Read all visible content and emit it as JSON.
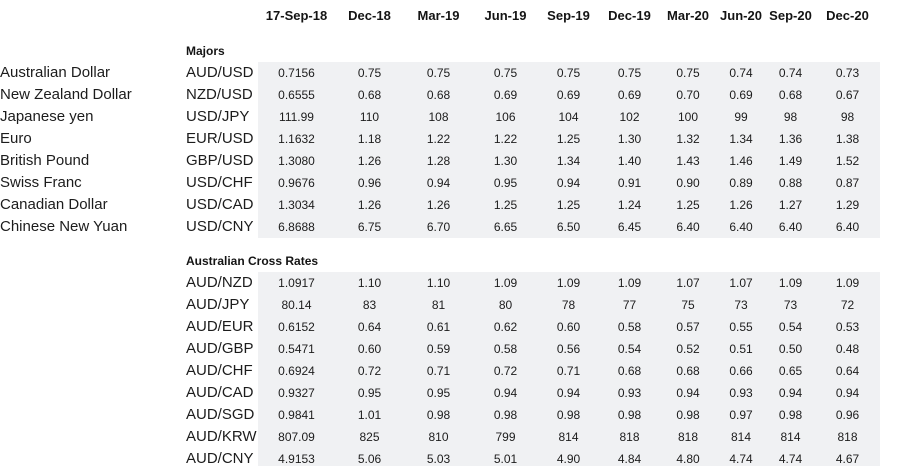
{
  "page": {
    "background_color": "#ffffff",
    "text_color": "#1c1c1c",
    "data_cell_background": "#f0f1f3"
  },
  "chart_data": {
    "type": "table",
    "title": "",
    "columns": [
      "17-Sep-18",
      "Dec-18",
      "Mar-19",
      "Jun-19",
      "Sep-19",
      "Dec-19",
      "Mar-20",
      "Jun-20",
      "Sep-20",
      "Dec-20"
    ],
    "layout": {
      "grid": false,
      "borders": "none",
      "numeric_cell_background": "#f0f1f3",
      "sections_separated": true
    },
    "sections": [
      {
        "label": "Majors",
        "rows": [
          {
            "name": "Australian Dollar",
            "pair": "AUD/USD",
            "values": [
              "0.7156",
              "0.75",
              "0.75",
              "0.75",
              "0.75",
              "0.75",
              "0.75",
              "0.74",
              "0.74",
              "0.73"
            ]
          },
          {
            "name": "New Zealand Dollar",
            "pair": "NZD/USD",
            "values": [
              "0.6555",
              "0.68",
              "0.68",
              "0.69",
              "0.69",
              "0.69",
              "0.70",
              "0.69",
              "0.68",
              "0.67"
            ]
          },
          {
            "name": "Japanese yen",
            "pair": "USD/JPY",
            "values": [
              "111.99",
              "110",
              "108",
              "106",
              "104",
              "102",
              "100",
              "99",
              "98",
              "98"
            ]
          },
          {
            "name": "Euro",
            "pair": "EUR/USD",
            "values": [
              "1.1632",
              "1.18",
              "1.22",
              "1.22",
              "1.25",
              "1.30",
              "1.32",
              "1.34",
              "1.36",
              "1.38"
            ]
          },
          {
            "name": "British Pound",
            "pair": "GBP/USD",
            "values": [
              "1.3080",
              "1.26",
              "1.28",
              "1.30",
              "1.34",
              "1.40",
              "1.43",
              "1.46",
              "1.49",
              "1.52"
            ]
          },
          {
            "name": "Swiss Franc",
            "pair": "USD/CHF",
            "values": [
              "0.9676",
              "0.96",
              "0.94",
              "0.95",
              "0.94",
              "0.91",
              "0.90",
              "0.89",
              "0.88",
              "0.87"
            ]
          },
          {
            "name": "Canadian Dollar",
            "pair": "USD/CAD",
            "values": [
              "1.3034",
              "1.26",
              "1.26",
              "1.25",
              "1.25",
              "1.24",
              "1.25",
              "1.26",
              "1.27",
              "1.29"
            ]
          },
          {
            "name": "Chinese New Yuan",
            "pair": "USD/CNY",
            "values": [
              "6.8688",
              "6.75",
              "6.70",
              "6.65",
              "6.50",
              "6.45",
              "6.40",
              "6.40",
              "6.40",
              "6.40"
            ]
          }
        ]
      },
      {
        "label": "Australian Cross Rates",
        "rows": [
          {
            "name": "",
            "pair": "AUD/NZD",
            "values": [
              "1.0917",
              "1.10",
              "1.10",
              "1.09",
              "1.09",
              "1.09",
              "1.07",
              "1.07",
              "1.09",
              "1.09"
            ]
          },
          {
            "name": "",
            "pair": "AUD/JPY",
            "values": [
              "80.14",
              "83",
              "81",
              "80",
              "78",
              "77",
              "75",
              "73",
              "73",
              "72"
            ]
          },
          {
            "name": "",
            "pair": "AUD/EUR",
            "values": [
              "0.6152",
              "0.64",
              "0.61",
              "0.62",
              "0.60",
              "0.58",
              "0.57",
              "0.55",
              "0.54",
              "0.53"
            ]
          },
          {
            "name": "",
            "pair": "AUD/GBP",
            "values": [
              "0.5471",
              "0.60",
              "0.59",
              "0.58",
              "0.56",
              "0.54",
              "0.52",
              "0.51",
              "0.50",
              "0.48"
            ]
          },
          {
            "name": "",
            "pair": "AUD/CHF",
            "values": [
              "0.6924",
              "0.72",
              "0.71",
              "0.72",
              "0.71",
              "0.68",
              "0.68",
              "0.66",
              "0.65",
              "0.64"
            ]
          },
          {
            "name": "",
            "pair": "AUD/CAD",
            "values": [
              "0.9327",
              "0.95",
              "0.95",
              "0.94",
              "0.94",
              "0.93",
              "0.94",
              "0.93",
              "0.94",
              "0.94"
            ]
          },
          {
            "name": "",
            "pair": "AUD/SGD",
            "values": [
              "0.9841",
              "1.01",
              "0.98",
              "0.98",
              "0.98",
              "0.98",
              "0.98",
              "0.97",
              "0.98",
              "0.96"
            ]
          },
          {
            "name": "",
            "pair": "AUD/KRW",
            "values": [
              "807.09",
              "825",
              "810",
              "799",
              "814",
              "818",
              "818",
              "814",
              "814",
              "818"
            ]
          },
          {
            "name": "",
            "pair": "AUD/CNY",
            "values": [
              "4.9153",
              "5.06",
              "5.03",
              "5.01",
              "4.90",
              "4.84",
              "4.80",
              "4.74",
              "4.74",
              "4.67"
            ]
          }
        ]
      }
    ]
  }
}
